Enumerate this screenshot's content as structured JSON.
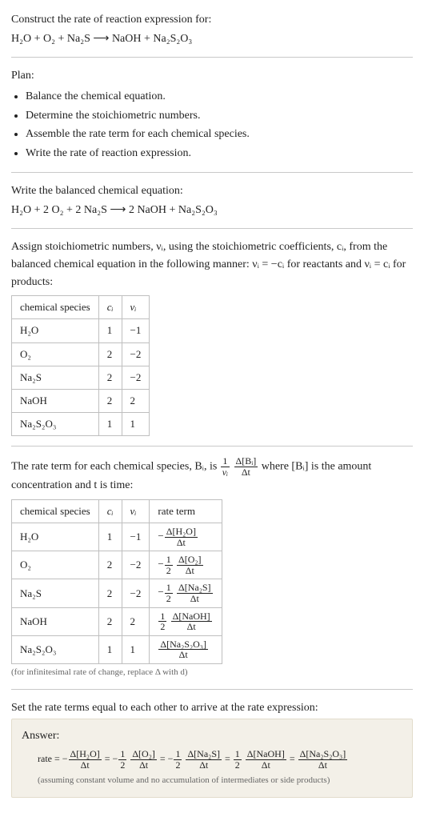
{
  "intro": {
    "line1": "Construct the rate of reaction expression for:",
    "eq": "H₂O + O₂ + Na₂S ⟶ NaOH + Na₂S₂O₃"
  },
  "plan": {
    "heading": "Plan:",
    "items": [
      "Balance the chemical equation.",
      "Determine the stoichiometric numbers.",
      "Assemble the rate term for each chemical species.",
      "Write the rate of reaction expression."
    ]
  },
  "balanced": {
    "heading": "Write the balanced chemical equation:",
    "eq": "H₂O + 2 O₂ + 2 Na₂S ⟶ 2 NaOH + Na₂S₂O₃"
  },
  "assign": {
    "text": "Assign stoichiometric numbers, νᵢ, using the stoichiometric coefficients, cᵢ, from the balanced chemical equation in the following manner: νᵢ = −cᵢ for reactants and νᵢ = cᵢ for products:",
    "table": {
      "headers": [
        "chemical species",
        "cᵢ",
        "νᵢ"
      ],
      "rows": [
        [
          "H₂O",
          "1",
          "−1"
        ],
        [
          "O₂",
          "2",
          "−2"
        ],
        [
          "Na₂S",
          "2",
          "−2"
        ],
        [
          "NaOH",
          "2",
          "2"
        ],
        [
          "Na₂S₂O₃",
          "1",
          "1"
        ]
      ]
    }
  },
  "rateterm": {
    "pre": "The rate term for each chemical species, Bᵢ, is ",
    "coeff_num": "1",
    "coeff_den": "νᵢ",
    "frac_num": "Δ[Bᵢ]",
    "frac_den": "Δt",
    "post": " where [Bᵢ] is the amount concentration and t is time:",
    "table": {
      "headers": [
        "chemical species",
        "cᵢ",
        "νᵢ",
        "rate term"
      ],
      "rows": [
        {
          "sp": "H₂O",
          "c": "1",
          "v": "−1",
          "sign": "−",
          "coef_num": "",
          "coef_den": "",
          "num": "Δ[H₂O]",
          "den": "Δt"
        },
        {
          "sp": "O₂",
          "c": "2",
          "v": "−2",
          "sign": "−",
          "coef_num": "1",
          "coef_den": "2",
          "num": "Δ[O₂]",
          "den": "Δt"
        },
        {
          "sp": "Na₂S",
          "c": "2",
          "v": "−2",
          "sign": "−",
          "coef_num": "1",
          "coef_den": "2",
          "num": "Δ[Na₂S]",
          "den": "Δt"
        },
        {
          "sp": "NaOH",
          "c": "2",
          "v": "2",
          "sign": "",
          "coef_num": "1",
          "coef_den": "2",
          "num": "Δ[NaOH]",
          "den": "Δt"
        },
        {
          "sp": "Na₂S₂O₃",
          "c": "1",
          "v": "1",
          "sign": "",
          "coef_num": "",
          "coef_den": "",
          "num": "Δ[Na₂S₂O₃]",
          "den": "Δt"
        }
      ]
    },
    "caption": "(for infinitesimal rate of change, replace Δ with d)"
  },
  "final": {
    "heading": "Set the rate terms equal to each other to arrive at the rate expression:",
    "answer_label": "Answer:",
    "rate_label": "rate =",
    "terms": [
      {
        "sign": "−",
        "coef_num": "",
        "coef_den": "",
        "num": "Δ[H₂O]",
        "den": "Δt"
      },
      {
        "sign": "−",
        "coef_num": "1",
        "coef_den": "2",
        "num": "Δ[O₂]",
        "den": "Δt"
      },
      {
        "sign": "−",
        "coef_num": "1",
        "coef_den": "2",
        "num": "Δ[Na₂S]",
        "den": "Δt"
      },
      {
        "sign": "",
        "coef_num": "1",
        "coef_den": "2",
        "num": "Δ[NaOH]",
        "den": "Δt"
      },
      {
        "sign": "",
        "coef_num": "",
        "coef_den": "",
        "num": "Δ[Na₂S₂O₃]",
        "den": "Δt"
      }
    ],
    "note": "(assuming constant volume and no accumulation of intermediates or side products)"
  }
}
